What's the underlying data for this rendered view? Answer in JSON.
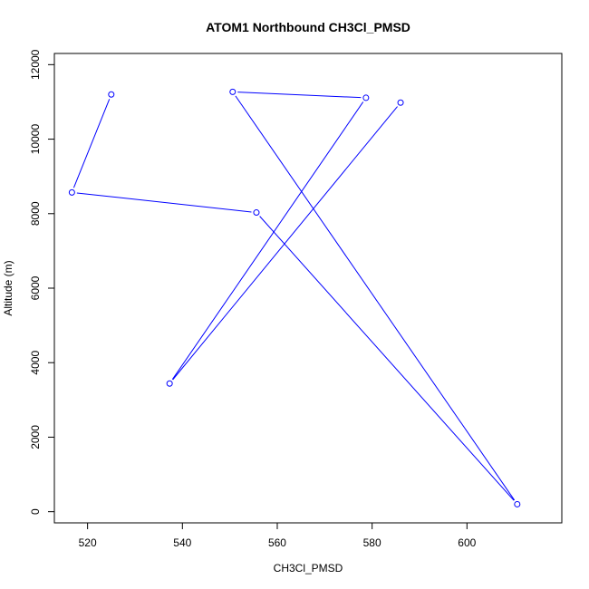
{
  "chart_data": {
    "type": "line",
    "title": "ATOM1 Northbound CH3Cl_PMSD",
    "xlabel": "CH3Cl_PMSD",
    "ylabel": "Altitude (m)",
    "xlim": [
      513,
      620
    ],
    "ylim": [
      -300,
      12300
    ],
    "x_ticks": [
      520,
      540,
      560,
      580,
      600
    ],
    "y_ticks": [
      0,
      2000,
      4000,
      6000,
      8000,
      10000,
      12000
    ],
    "grid": false,
    "color": "#0000ff",
    "marker": "open-circle",
    "series": [
      {
        "points": [
          {
            "x": 525.0,
            "y": 11200
          },
          {
            "x": 516.7,
            "y": 8570
          },
          {
            "x": 555.6,
            "y": 8030
          },
          {
            "x": 610.6,
            "y": 200
          },
          {
            "x": 550.6,
            "y": 11270
          },
          {
            "x": 578.7,
            "y": 11110
          },
          {
            "x": 537.3,
            "y": 3440
          },
          {
            "x": 586.0,
            "y": 10980
          }
        ]
      }
    ]
  }
}
